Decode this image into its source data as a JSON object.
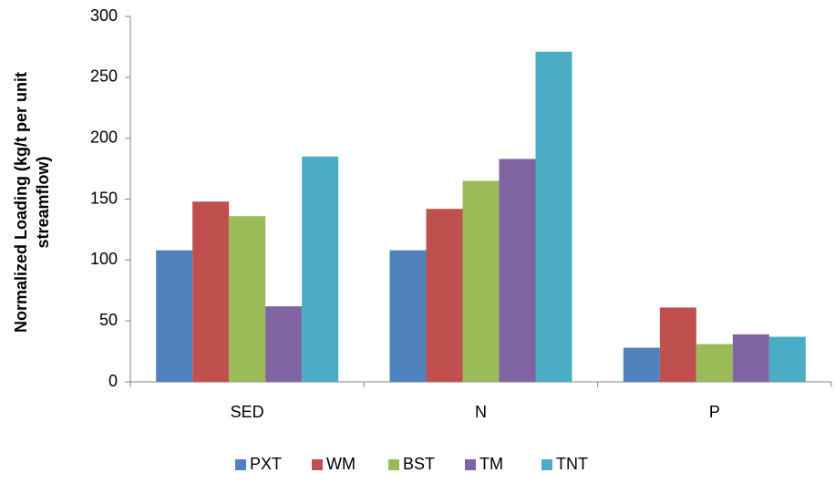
{
  "chart_data": {
    "type": "bar",
    "ylabel": [
      "Normalized Loading (kg/t per unit",
      "streamflow)"
    ],
    "categories": [
      "SED",
      "N",
      "P"
    ],
    "series": [
      {
        "name": "PXT",
        "color": "#4f81bd",
        "values": [
          108,
          108,
          28
        ]
      },
      {
        "name": "WM",
        "color": "#c0504d",
        "values": [
          148,
          142,
          61
        ]
      },
      {
        "name": "BST",
        "color": "#9bbb59",
        "values": [
          136,
          165,
          31
        ]
      },
      {
        "name": "TM",
        "color": "#8064a2",
        "values": [
          62,
          183,
          39
        ]
      },
      {
        "name": "TNT",
        "color": "#4bacc6",
        "values": [
          185,
          271,
          37
        ]
      }
    ],
    "ylim": [
      0,
      300
    ],
    "yticks": [
      0,
      50,
      100,
      150,
      200,
      250,
      300
    ],
    "grid": false,
    "legend": "bottom"
  }
}
